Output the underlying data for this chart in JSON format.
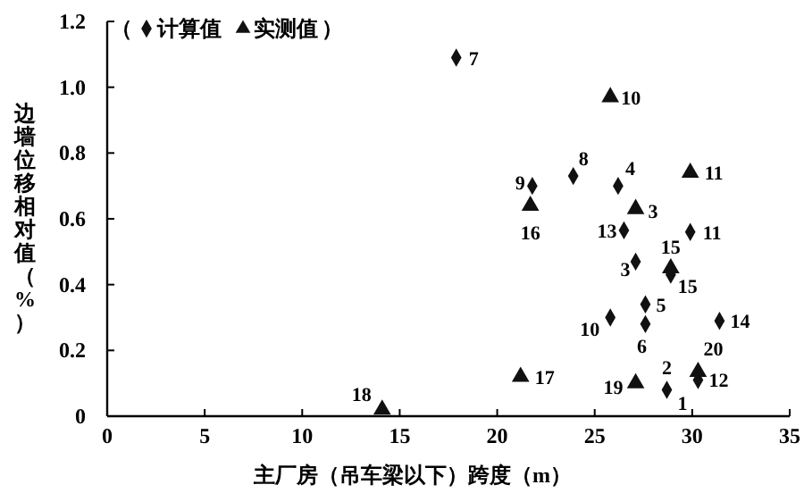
{
  "chart_data": {
    "type": "scatter",
    "xlabel": "主厂房（吊车梁以下）跨度（m）",
    "ylabel": "边墙位移相对值（%）",
    "xlim": [
      0,
      35
    ],
    "xticks": [
      0,
      5,
      10,
      15,
      20,
      25,
      30,
      35
    ],
    "ylim": [
      0,
      1.2
    ],
    "yticks": [
      0,
      0.2,
      0.4,
      0.6,
      0.8,
      {
        "value": 1,
        "label": "1.0"
      },
      1.2
    ],
    "grid": false,
    "legend": "top left",
    "series": [
      {
        "name": "计算值",
        "color": "#111111",
        "marker": "diamond",
        "x": [
          17.9,
          23.9,
          21.8,
          26.2,
          26.5,
          29.9,
          27.1,
          28.9,
          27.6,
          25.8,
          27.6,
          31.4,
          28.7,
          30.3
        ],
        "values": [
          1.09,
          0.73,
          0.7,
          0.7,
          0.565,
          0.56,
          0.47,
          0.43,
          0.34,
          0.3,
          0.28,
          0.29,
          0.08,
          0.11
        ]
      },
      {
        "name": "实测值",
        "color": "#111111",
        "marker": "triangle",
        "x": [
          25.8,
          29.9,
          21.7,
          27.1,
          28.9,
          21.2,
          27.1,
          14.1,
          30.3
        ],
        "values": [
          0.97,
          0.74,
          0.64,
          0.63,
          0.45,
          0.12,
          0.1,
          0.02,
          0.135
        ]
      }
    ],
    "annotations": [
      "（",
      "）",
      {
        "text": "7",
        "x": 17.9,
        "y": 1.09
      },
      {
        "text": "8",
        "x": 23.9,
        "y": 0.73
      },
      {
        "text": "9",
        "x": 21.8,
        "y": 0.7
      },
      {
        "text": "4",
        "x": 26.2,
        "y": 0.7
      },
      {
        "text": "13",
        "x": 26.5,
        "y": 0.565
      },
      {
        "text": "11",
        "x": 29.9,
        "y": 0.56
      },
      {
        "text": "3",
        "x": 27.1,
        "y": 0.47
      },
      {
        "text": "15",
        "x": 28.9,
        "y": 0.43
      },
      {
        "text": "5",
        "x": 27.6,
        "y": 0.34
      },
      {
        "text": "10",
        "x": 25.8,
        "y": 0.3
      },
      {
        "text": "6",
        "x": 27.6,
        "y": 0.28
      },
      {
        "text": "14",
        "x": 31.4,
        "y": 0.29
      },
      {
        "text": "2",
        "x": 28.7,
        "y": 0.08
      },
      {
        "text": "1",
        "x": 28.7,
        "y": 0.08
      },
      {
        "text": "12",
        "x": 30.3,
        "y": 0.11
      },
      {
        "text": "10",
        "x": 25.8,
        "y": 0.97
      },
      {
        "text": "11",
        "x": 29.9,
        "y": 0.74
      },
      {
        "text": "16",
        "x": 21.7,
        "y": 0.64
      },
      {
        "text": "3",
        "x": 27.1,
        "y": 0.63
      },
      {
        "text": "15",
        "x": 28.9,
        "y": 0.45
      },
      {
        "text": "17",
        "x": 21.2,
        "y": 0.12
      },
      {
        "text": "19",
        "x": 27.1,
        "y": 0.1
      },
      {
        "text": "18",
        "x": 14.1,
        "y": 0.02
      },
      {
        "text": "20",
        "x": 30.3,
        "y": 0.135
      }
    ]
  }
}
